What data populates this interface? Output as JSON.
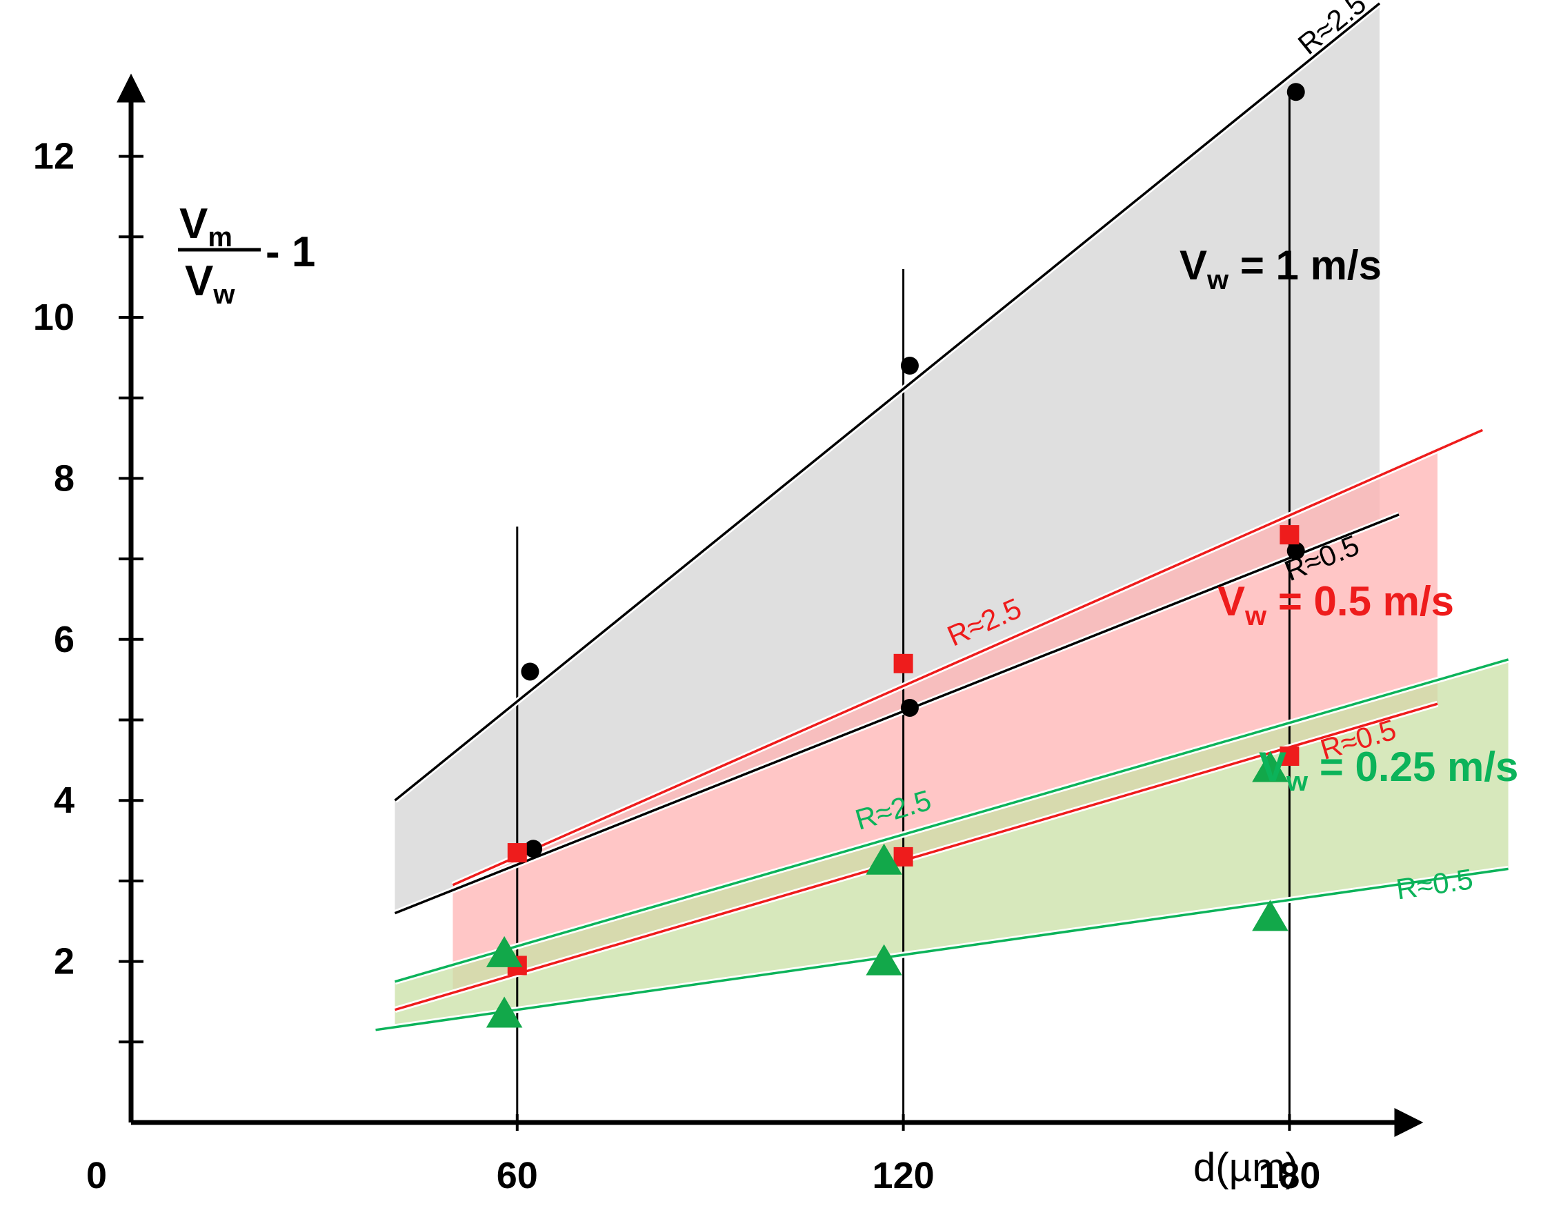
{
  "chart_data": {
    "type": "scatter",
    "title": "",
    "xlabel": "d(µm)",
    "ylabel": {
      "numerator": "V",
      "numerator_sub": "m",
      "denominator": "V",
      "denominator_sub": "w",
      "suffix": "- 1"
    },
    "xlim": [
      0,
      210
    ],
    "ylim": [
      0,
      13
    ],
    "x_ticks": [
      0,
      60,
      120,
      180
    ],
    "y_ticks": [
      2,
      4,
      6,
      8,
      10,
      12
    ],
    "colors": {
      "black": "#000000",
      "red": "#ee1c1c",
      "green": "#0cb35a",
      "grey_band": "#d9d9d9",
      "red_band": "#ffb3b3",
      "green_band": "#c9e0a5",
      "marker_green": "#12a84a"
    },
    "groups": [
      {
        "name": "V_w = 1 m/s",
        "label": {
          "prefix": "V",
          "sub": "w",
          "text": " = 1 m/s"
        },
        "color": "black",
        "marker": "circle",
        "points": [
          {
            "x": 62,
            "y": 5.6
          },
          {
            "x": 62.5,
            "y": 3.4
          },
          {
            "x": 121,
            "y": 9.4
          },
          {
            "x": 121,
            "y": 5.15
          },
          {
            "x": 181,
            "y": 12.8
          },
          {
            "x": 181,
            "y": 7.1
          }
        ],
        "fits": [
          {
            "label": "R≈2.5",
            "x": [
              41,
              194
            ],
            "y": [
              4.0,
              13.9
            ]
          },
          {
            "label": "R≈0.5",
            "x": [
              41,
              197
            ],
            "y": [
              2.6,
              7.55
            ]
          }
        ]
      },
      {
        "name": "V_w = 0.5 m/s",
        "label": {
          "prefix": "V",
          "sub": "w",
          "text": " = 0.5 m/s"
        },
        "color": "red",
        "marker": "square",
        "points": [
          {
            "x": 60,
            "y": 3.35
          },
          {
            "x": 60,
            "y": 1.95
          },
          {
            "x": 120,
            "y": 5.7
          },
          {
            "x": 120,
            "y": 3.3
          },
          {
            "x": 180,
            "y": 7.3
          },
          {
            "x": 180,
            "y": 4.55
          }
        ],
        "fits": [
          {
            "label": "R≈2.5",
            "x": [
              50,
              210
            ],
            "y": [
              2.95,
              8.6
            ]
          },
          {
            "label": "R≈0.5",
            "x": [
              41,
              203
            ],
            "y": [
              1.4,
              5.2
            ]
          }
        ]
      },
      {
        "name": "V_w = 0.25 m/s",
        "label": {
          "prefix": "V",
          "sub": "w",
          "text": " = 0.25 m/s"
        },
        "color": "green",
        "marker": "triangle",
        "points": [
          {
            "x": 58,
            "y": 2.1
          },
          {
            "x": 58,
            "y": 1.35
          },
          {
            "x": 117,
            "y": 3.25
          },
          {
            "x": 117,
            "y": 2.0
          },
          {
            "x": 177,
            "y": 4.4
          },
          {
            "x": 177,
            "y": 2.55
          }
        ],
        "fits": [
          {
            "label": "R≈2.5",
            "x": [
              41,
              214
            ],
            "y": [
              1.75,
              5.75
            ]
          },
          {
            "label": "R≈0.5",
            "x": [
              38,
              214
            ],
            "y": [
              1.15,
              3.15
            ]
          }
        ]
      }
    ],
    "vertical_lines": [
      60,
      120,
      180
    ]
  }
}
